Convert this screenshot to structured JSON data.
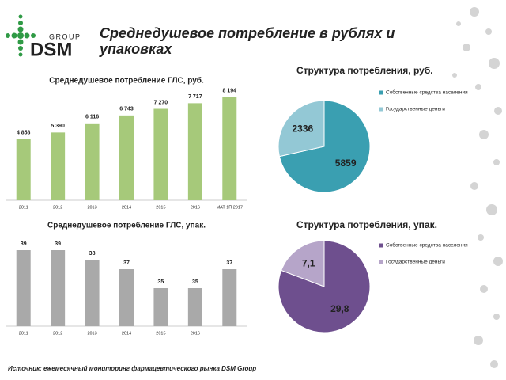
{
  "logo": {
    "group": "GROUP",
    "name": "DSM"
  },
  "title": "Среднедушевое потребление в рублях и упаковках",
  "source": "Источник: ежемесячный мониторинг фармацевтического рынка DSM Group",
  "chart_data": [
    {
      "type": "bar",
      "title": "Среднедушевое потребление ГЛС, руб.",
      "categories": [
        "2011",
        "2012",
        "2013",
        "2014",
        "2015",
        "2016",
        "MAT 1П 2017"
      ],
      "values": [
        4858,
        5390,
        6116,
        6743,
        7270,
        7717,
        8194
      ],
      "value_labels": [
        "4 858",
        "5 390",
        "6 116",
        "6 743",
        "7 270",
        "7 717",
        "8 194"
      ],
      "color": "#a6c97a",
      "ylim": [
        0,
        9000
      ]
    },
    {
      "type": "bar",
      "title": "Среднедушевое потребление ГЛС, упак.",
      "categories": [
        "2011",
        "2012",
        "2013",
        "2014",
        "2015",
        "2016",
        null
      ],
      "values": [
        39,
        39,
        38,
        37,
        35,
        35,
        37
      ],
      "color": "#a9a9a9",
      "ylim": [
        31,
        40
      ]
    },
    {
      "type": "pie",
      "title": "Структура потребления, руб.",
      "categories": [
        "Собственные средства населения",
        "Государственные деньги"
      ],
      "values": [
        5859,
        2336
      ],
      "colors": [
        "#3a9fb1",
        "#93c8d5"
      ]
    },
    {
      "type": "pie",
      "title": "Структура потребления, упак.",
      "categories": [
        "Собственные средства населения",
        "Государственные деньги"
      ],
      "values": [
        29.8,
        7.1
      ],
      "value_labels": [
        "29,8",
        "7,1"
      ],
      "colors": [
        "#6e4f8e",
        "#b6a5c9"
      ]
    }
  ]
}
